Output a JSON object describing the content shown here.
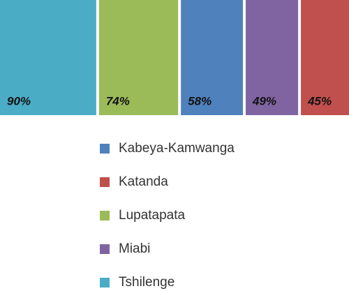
{
  "chart_data": {
    "type": "proportional-bar",
    "series": [
      {
        "color": "#4bacc6",
        "values": [
          90
        ],
        "value_labels": [
          "90%"
        ]
      },
      {
        "color": "#9bbb59",
        "values": [
          74
        ],
        "value_labels": [
          "74%"
        ]
      },
      {
        "color": "#4f81bd",
        "values": [
          58
        ],
        "value_labels": [
          "58%"
        ]
      },
      {
        "color": "#8064a2",
        "values": [
          49
        ],
        "value_labels": [
          "49%"
        ]
      },
      {
        "color": "#c0504d",
        "values": [
          45
        ],
        "value_labels": [
          "45%"
        ]
      }
    ],
    "legend": [
      {
        "name": "Kabeya-Kamwanga",
        "color": "#4f81bd"
      },
      {
        "name": "Katanda",
        "color": "#c0504d"
      },
      {
        "name": "Lupatapata",
        "color": "#9bbb59"
      },
      {
        "name": "Miabi",
        "color": "#8064a2"
      },
      {
        "name": "Tshilenge",
        "color": "#4bacc6"
      }
    ]
  }
}
